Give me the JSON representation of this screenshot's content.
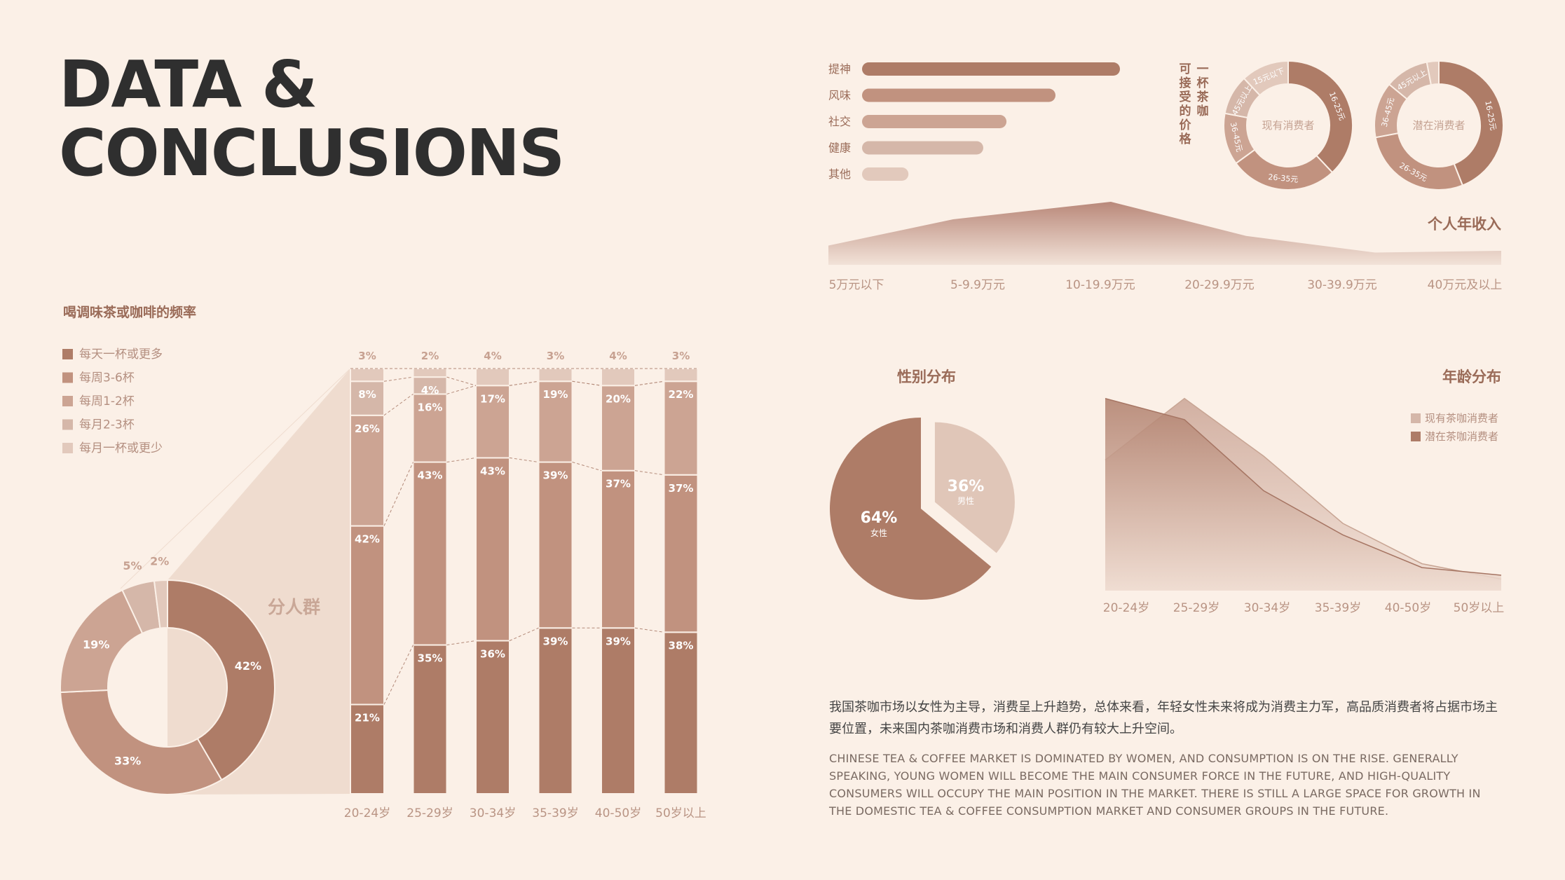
{
  "title": {
    "line1": "DATA &",
    "line2": "CONCLUSIONS"
  },
  "colors": {
    "c1": "#ae7c67",
    "c2": "#c1927f",
    "c3": "#cca493",
    "c4": "#d5b7a9",
    "c5": "#e2c9bc",
    "bg": "#fbf0e7",
    "accent_text": "#9a6b58"
  },
  "frequency": {
    "title": "喝调味茶或咖啡的频率",
    "group_label": "分人群",
    "legend": [
      "每天一杯或更多",
      "每周3-6杯",
      "每周1-2杯",
      "每月2-3杯",
      "每月一杯或更少"
    ]
  },
  "chart_data": [
    {
      "type": "donut",
      "id": "overall_frequency",
      "categories": [
        "每天一杯或更多",
        "每周3-6杯",
        "每周1-2杯",
        "每月2-3杯",
        "每月一杯或更少"
      ],
      "values": [
        42,
        33,
        19,
        5,
        2
      ],
      "labels": [
        "42%",
        "33%",
        "19%",
        "5%",
        "2%"
      ]
    },
    {
      "type": "stacked_bar",
      "id": "frequency_by_age",
      "categories": [
        "20-24岁",
        "25-29岁",
        "30-34岁",
        "35-39岁",
        "40-50岁",
        "50岁以上"
      ],
      "series": [
        {
          "name": "每天一杯或更多",
          "values": [
            21,
            35,
            36,
            39,
            39,
            38
          ]
        },
        {
          "name": "每周3-6杯",
          "values": [
            42,
            43,
            43,
            39,
            37,
            37
          ]
        },
        {
          "name": "每周1-2杯",
          "values": [
            26,
            16,
            17,
            19,
            20,
            22
          ]
        },
        {
          "name": "每月2-3杯",
          "values": [
            8,
            4,
            0,
            0,
            0,
            0
          ]
        },
        {
          "name": "每月一杯或更少",
          "values": [
            3,
            2,
            4,
            3,
            4,
            3
          ]
        }
      ],
      "labels": [
        [
          "21%",
          "35%",
          "36%",
          "39%",
          "39%",
          "38%"
        ],
        [
          "42%",
          "43%",
          "43%",
          "39%",
          "37%",
          "37%"
        ],
        [
          "26%",
          "16%",
          "17%",
          "19%",
          "20%",
          "22%"
        ],
        [
          "8%",
          "4%",
          "",
          "",
          "",
          ""
        ],
        [
          "3%",
          "2%",
          "4%",
          "3%",
          "4%",
          "3%"
        ]
      ]
    },
    {
      "type": "bar",
      "id": "reasons",
      "orientation": "horizontal",
      "categories": [
        "提神",
        "风味",
        "社交",
        "健康",
        "其他"
      ],
      "values": [
        100,
        75,
        56,
        47,
        18
      ]
    },
    {
      "type": "donut",
      "id": "price_current",
      "center_label": "现有消费者",
      "categories": [
        "16-25元",
        "26-35元",
        "36-45元",
        "45元以上",
        "15元以下"
      ],
      "values": [
        38,
        27,
        13,
        10,
        12
      ]
    },
    {
      "type": "donut",
      "id": "price_potential",
      "center_label": "潜在消费者",
      "categories": [
        "16-25元",
        "26-35元",
        "36-45元",
        "45元以上",
        "15元以下"
      ],
      "values": [
        44,
        28,
        14,
        11,
        3
      ]
    },
    {
      "type": "area",
      "id": "income",
      "title": "个人年收入",
      "categories": [
        "5万元以下",
        "5-9.9万元",
        "10-19.9万元",
        "20-29.9万元",
        "30-39.9万元",
        "40万元及以上"
      ],
      "values": [
        22,
        52,
        72,
        33,
        14,
        16
      ],
      "ylim": [
        0,
        80
      ]
    },
    {
      "type": "pie",
      "id": "gender",
      "title": "性别分布",
      "categories": [
        "女性",
        "男性"
      ],
      "values": [
        64,
        36
      ],
      "labels": [
        "64%",
        "36%"
      ]
    },
    {
      "type": "area",
      "id": "age",
      "title": "年龄分布",
      "categories": [
        "20-24岁",
        "25-29岁",
        "30-34岁",
        "35-39岁",
        "40-50岁",
        "50岁以上"
      ],
      "series": [
        {
          "name": "现有茶咖消费者",
          "values": [
            68,
            100,
            70,
            35,
            14,
            6
          ]
        },
        {
          "name": "潜在茶咖消费者",
          "values": [
            100,
            89,
            52,
            29,
            12,
            8
          ]
        }
      ],
      "ylim": [
        0,
        105
      ]
    }
  ],
  "price_title": "一杯茶咖可接受的价格",
  "conclusion": {
    "cn": "我国茶咖市场以女性为主导，消费呈上升趋势，总体来看，年轻女性未来将成为消费主力军，高品质消费者将占据市场主要位置，未来国内茶咖消费市场和消费人群仍有较大上升空间。",
    "en": "CHINESE TEA & COFFEE MARKET IS DOMINATED BY WOMEN, AND CONSUMPTION IS ON THE RISE. GENERALLY SPEAKING, YOUNG WOMEN WILL BECOME THE MAIN CONSUMER FORCE IN THE FUTURE, AND HIGH-QUALITY CONSUMERS WILL OCCUPY THE MAIN POSITION IN THE MARKET. THERE IS STILL A LARGE SPACE FOR GROWTH IN THE DOMESTIC TEA & COFFEE CONSUMPTION MARKET AND CONSUMER GROUPS IN THE FUTURE."
  }
}
